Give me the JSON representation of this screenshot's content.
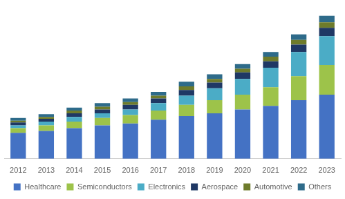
{
  "chart_data": {
    "type": "bar",
    "stacked": true,
    "categories": [
      "2012",
      "2013",
      "2014",
      "2015",
      "2016",
      "2017",
      "2018",
      "2019",
      "2020",
      "2021",
      "2022",
      "2023"
    ],
    "series": [
      {
        "name": "Healthcare",
        "color": "#4472c4",
        "values": [
          28,
          30,
          33,
          36,
          38,
          42,
          46,
          49,
          53,
          57,
          63,
          69
        ]
      },
      {
        "name": "Semiconductors",
        "color": "#9dc34a",
        "values": [
          5,
          6,
          7,
          8,
          9,
          10,
          12,
          14,
          16,
          20,
          26,
          32
        ]
      },
      {
        "name": "Electronics",
        "color": "#4bacc6",
        "values": [
          3,
          4,
          5,
          5,
          6,
          8,
          10,
          13,
          17,
          21,
          26,
          31
        ]
      },
      {
        "name": "Aerospace",
        "color": "#1f3864",
        "values": [
          3,
          3,
          4,
          4,
          5,
          5,
          6,
          6,
          7,
          7,
          8,
          9
        ]
      },
      {
        "name": "Automotive",
        "color": "#6e7b2b",
        "values": [
          2,
          2,
          3,
          3,
          3,
          3,
          4,
          4,
          4,
          5,
          5,
          6
        ]
      },
      {
        "name": "Others",
        "color": "#2e6b8a",
        "values": [
          3,
          3,
          3,
          4,
          4,
          4,
          5,
          5,
          5,
          5,
          6,
          7
        ]
      }
    ],
    "ylim": [
      0,
      165
    ],
    "tick_labels": "x",
    "grid": false,
    "legend": "bottom"
  }
}
